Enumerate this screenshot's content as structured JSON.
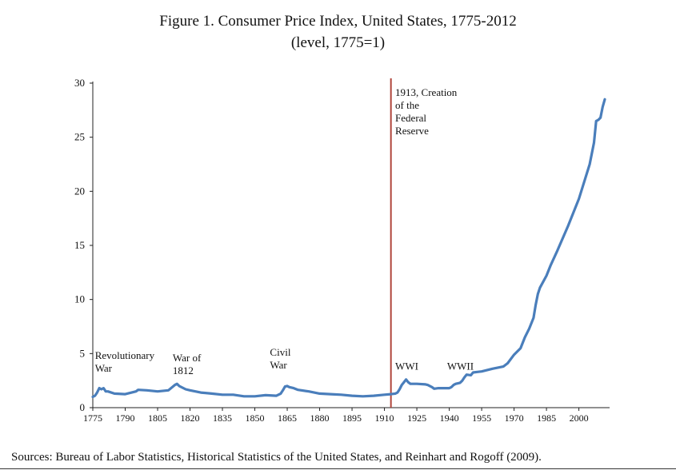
{
  "chart_data": {
    "type": "line",
    "title": "Figure 1. Consumer Price Index, United States, 1775-2012",
    "subtitle": "(level, 1775=1)",
    "xlabel": "",
    "ylabel": "",
    "xlim": [
      1775,
      2012
    ],
    "ylim": [
      0,
      30
    ],
    "y_ticks": [
      0,
      5,
      10,
      15,
      20,
      25,
      30
    ],
    "x_ticks": [
      1775,
      1790,
      1805,
      1820,
      1835,
      1850,
      1865,
      1880,
      1895,
      1910,
      1925,
      1940,
      1955,
      1970,
      1985,
      2000
    ],
    "grid": false,
    "legend": "none",
    "line_color": "#4a7ebb",
    "marker_color": "#b0453b",
    "series": [
      {
        "x": [
          1775,
          1776,
          1777,
          1778,
          1779,
          1780,
          1781,
          1782,
          1785,
          1790,
          1795,
          1796,
          1800,
          1805,
          1810,
          1813,
          1814,
          1815,
          1818,
          1820,
          1825,
          1830,
          1835,
          1840,
          1845,
          1850,
          1855,
          1860,
          1862,
          1863,
          1864,
          1865,
          1866,
          1868,
          1870,
          1875,
          1880,
          1885,
          1890,
          1895,
          1900,
          1905,
          1910,
          1913,
          1915,
          1916,
          1917,
          1918,
          1919,
          1920,
          1921,
          1922,
          1925,
          1929,
          1930,
          1932,
          1933,
          1935,
          1940,
          1941,
          1942,
          1943,
          1945,
          1946,
          1947,
          1948,
          1950,
          1951,
          1953,
          1955,
          1960,
          1965,
          1967,
          1970,
          1973,
          1975,
          1977,
          1979,
          1980,
          1981,
          1982,
          1985,
          1987,
          1990,
          1995,
          2000,
          2005,
          2007,
          2008,
          2009,
          2010,
          2011,
          2012
        ],
        "y": [
          1.0,
          1.1,
          1.4,
          1.8,
          1.7,
          1.8,
          1.5,
          1.5,
          1.3,
          1.25,
          1.5,
          1.65,
          1.6,
          1.5,
          1.6,
          2.1,
          2.2,
          2.0,
          1.7,
          1.6,
          1.4,
          1.3,
          1.2,
          1.2,
          1.05,
          1.05,
          1.15,
          1.1,
          1.3,
          1.6,
          1.95,
          2.0,
          1.9,
          1.8,
          1.65,
          1.5,
          1.3,
          1.25,
          1.2,
          1.1,
          1.05,
          1.1,
          1.2,
          1.25,
          1.3,
          1.4,
          1.7,
          2.1,
          2.35,
          2.6,
          2.35,
          2.2,
          2.2,
          2.15,
          2.1,
          1.9,
          1.75,
          1.8,
          1.8,
          1.9,
          2.1,
          2.2,
          2.3,
          2.5,
          2.8,
          3.05,
          3.0,
          3.25,
          3.3,
          3.35,
          3.6,
          3.8,
          4.1,
          4.9,
          5.5,
          6.5,
          7.3,
          8.3,
          9.5,
          10.5,
          11.1,
          12.2,
          13.2,
          14.5,
          16.8,
          19.3,
          22.5,
          24.5,
          26.5,
          26.6,
          26.8,
          27.8,
          28.5
        ]
      }
    ],
    "annotations": [
      {
        "lines": [
          "Revolutionary",
          "War"
        ],
        "x": 1776,
        "y": 4.5
      },
      {
        "lines": [
          "War of",
          "1812"
        ],
        "x": 1812,
        "y": 4.3
      },
      {
        "lines": [
          "Civil",
          "War"
        ],
        "x": 1857,
        "y": 4.8
      },
      {
        "lines": [
          "WWI"
        ],
        "x": 1915,
        "y": 3.5
      },
      {
        "lines": [
          "WWII"
        ],
        "x": 1939,
        "y": 3.5
      },
      {
        "lines": [
          "1913, Creation",
          "of the",
          "Federal",
          "Reserve"
        ],
        "x": 1915,
        "y": 28.8
      }
    ],
    "vertical_marker": {
      "x": 1913
    }
  },
  "footer": {
    "source": "Sources: Bureau of Labor Statistics, Historical Statistics of the United States, and Reinhart and Rogoff (2009)."
  }
}
